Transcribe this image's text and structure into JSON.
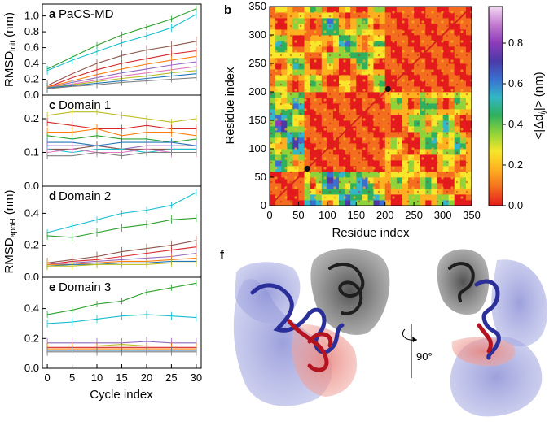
{
  "figure": {
    "panel_letters": [
      "a",
      "b",
      "c",
      "d",
      "e",
      "f"
    ],
    "rotation_label": "90°"
  },
  "chart_data": [
    {
      "id": "a",
      "type": "line",
      "title": "PaCS-MD",
      "ylabel_main": "RMSD",
      "ylabel_sub": "init",
      "ylabel_unit": " (nm)",
      "xlim": [
        -1,
        31
      ],
      "ylim": [
        0,
        1.15
      ],
      "yticks": [
        0.0,
        0.2,
        0.4,
        0.6,
        0.8,
        1.0
      ],
      "ytick_labels": [
        "0.0",
        "0.2",
        "0.4",
        "0.6",
        "0.8",
        "1.0"
      ],
      "x": [
        0,
        5,
        10,
        15,
        20,
        25,
        30
      ],
      "series": [
        {
          "name": "green",
          "color": "#2ca02c",
          "values": [
            0.33,
            0.48,
            0.63,
            0.76,
            0.86,
            0.96,
            1.09
          ]
        },
        {
          "name": "cyan",
          "color": "#17becf",
          "values": [
            0.31,
            0.44,
            0.55,
            0.66,
            0.75,
            0.85,
            1.02
          ]
        },
        {
          "name": "brown",
          "color": "#8c564b",
          "values": [
            0.12,
            0.27,
            0.4,
            0.5,
            0.57,
            0.62,
            0.68
          ]
        },
        {
          "name": "red",
          "color": "#d62728",
          "values": [
            0.1,
            0.22,
            0.32,
            0.4,
            0.46,
            0.52,
            0.56
          ]
        },
        {
          "name": "orange",
          "color": "#ff7f0e",
          "values": [
            0.1,
            0.18,
            0.26,
            0.33,
            0.39,
            0.44,
            0.49
          ]
        },
        {
          "name": "purple",
          "color": "#9467bd",
          "values": [
            0.09,
            0.16,
            0.22,
            0.28,
            0.33,
            0.38,
            0.42
          ]
        },
        {
          "name": "pink",
          "color": "#e377c2",
          "values": [
            0.09,
            0.14,
            0.19,
            0.24,
            0.28,
            0.32,
            0.36
          ]
        },
        {
          "name": "olive",
          "color": "#bcbd22",
          "values": [
            0.09,
            0.13,
            0.17,
            0.21,
            0.24,
            0.28,
            0.31
          ]
        },
        {
          "name": "blue",
          "color": "#1f77b4",
          "values": [
            0.09,
            0.12,
            0.15,
            0.18,
            0.21,
            0.24,
            0.27
          ]
        },
        {
          "name": "gray",
          "color": "#7f7f7f",
          "values": [
            0.08,
            0.11,
            0.13,
            0.16,
            0.18,
            0.2,
            0.22
          ]
        }
      ]
    },
    {
      "id": "c",
      "type": "line",
      "title": "Domain 1",
      "xlim": [
        -1,
        31
      ],
      "ylim": [
        0,
        0.27
      ],
      "yticks": [
        0.0,
        0.1,
        0.2
      ],
      "ytick_labels": [
        "0.0",
        "0.1",
        "0.2"
      ],
      "x": [
        0,
        5,
        10,
        15,
        20,
        25,
        30
      ],
      "series": [
        {
          "name": "olive",
          "color": "#bcbd22",
          "values": [
            0.21,
            0.22,
            0.22,
            0.21,
            0.2,
            0.19,
            0.2
          ]
        },
        {
          "name": "red",
          "color": "#d62728",
          "values": [
            0.19,
            0.18,
            0.17,
            0.17,
            0.18,
            0.17,
            0.17
          ]
        },
        {
          "name": "orange",
          "color": "#ff7f0e",
          "values": [
            0.16,
            0.16,
            0.17,
            0.15,
            0.16,
            0.16,
            0.15
          ]
        },
        {
          "name": "green",
          "color": "#2ca02c",
          "values": [
            0.15,
            0.14,
            0.15,
            0.14,
            0.14,
            0.13,
            0.14
          ]
        },
        {
          "name": "blue",
          "color": "#1f77b4",
          "values": [
            0.13,
            0.13,
            0.12,
            0.13,
            0.13,
            0.13,
            0.12
          ]
        },
        {
          "name": "purple",
          "color": "#9467bd",
          "values": [
            0.12,
            0.12,
            0.12,
            0.11,
            0.12,
            0.12,
            0.12
          ]
        },
        {
          "name": "brown",
          "color": "#8c564b",
          "values": [
            0.11,
            0.11,
            0.12,
            0.11,
            0.11,
            0.11,
            0.11
          ]
        },
        {
          "name": "cyan",
          "color": "#17becf",
          "values": [
            0.11,
            0.1,
            0.11,
            0.11,
            0.1,
            0.11,
            0.11
          ]
        },
        {
          "name": "pink",
          "color": "#e377c2",
          "values": [
            0.1,
            0.11,
            0.1,
            0.1,
            0.11,
            0.1,
            0.1
          ]
        },
        {
          "name": "gray",
          "color": "#7f7f7f",
          "values": [
            0.09,
            0.09,
            0.1,
            0.09,
            0.1,
            0.1,
            0.1
          ]
        }
      ]
    },
    {
      "id": "d",
      "type": "line",
      "title": "Domain 2",
      "ylabel_main": "RMSD",
      "ylabel_sub": "apoH",
      "ylabel_unit": " (nm)",
      "xlim": [
        -1,
        31
      ],
      "ylim": [
        0,
        0.57
      ],
      "yticks": [
        0.0,
        0.2,
        0.4
      ],
      "ytick_labels": [
        "0.0",
        "0.2",
        "0.4"
      ],
      "x": [
        0,
        5,
        10,
        15,
        20,
        25,
        30
      ],
      "series": [
        {
          "name": "cyan",
          "color": "#17becf",
          "values": [
            0.28,
            0.32,
            0.36,
            0.4,
            0.42,
            0.45,
            0.53
          ]
        },
        {
          "name": "green",
          "color": "#2ca02c",
          "values": [
            0.26,
            0.25,
            0.28,
            0.31,
            0.33,
            0.36,
            0.37
          ]
        },
        {
          "name": "brown",
          "color": "#8c564b",
          "values": [
            0.09,
            0.11,
            0.13,
            0.16,
            0.18,
            0.2,
            0.23
          ]
        },
        {
          "name": "red",
          "color": "#d62728",
          "values": [
            0.08,
            0.1,
            0.11,
            0.13,
            0.15,
            0.17,
            0.19
          ]
        },
        {
          "name": "purple",
          "color": "#9467bd",
          "values": [
            0.08,
            0.09,
            0.1,
            0.11,
            0.12,
            0.13,
            0.15
          ]
        },
        {
          "name": "orange",
          "color": "#ff7f0e",
          "values": [
            0.08,
            0.08,
            0.09,
            0.1,
            0.1,
            0.11,
            0.12
          ]
        },
        {
          "name": "blue",
          "color": "#1f77b4",
          "values": [
            0.07,
            0.08,
            0.08,
            0.09,
            0.09,
            0.1,
            0.1
          ]
        },
        {
          "name": "olive",
          "color": "#bcbd22",
          "values": [
            0.07,
            0.07,
            0.08,
            0.08,
            0.08,
            0.09,
            0.09
          ]
        }
      ]
    },
    {
      "id": "e",
      "type": "line",
      "title": "Domain 3",
      "xlabel": "Cycle index",
      "xlim": [
        -1,
        31
      ],
      "ylim": [
        0,
        0.61
      ],
      "yticks": [
        0.0,
        0.2,
        0.4
      ],
      "ytick_labels": [
        "0.0",
        "0.2",
        "0.4"
      ],
      "xticks": [
        0,
        5,
        10,
        15,
        20,
        25,
        30
      ],
      "xtick_labels": [
        "0",
        "5",
        "10",
        "15",
        "20",
        "25",
        "30"
      ],
      "x": [
        0,
        5,
        10,
        15,
        20,
        25,
        30
      ],
      "series": [
        {
          "name": "green",
          "color": "#2ca02c",
          "values": [
            0.36,
            0.39,
            0.43,
            0.45,
            0.51,
            0.54,
            0.57
          ]
        },
        {
          "name": "cyan",
          "color": "#17becf",
          "values": [
            0.3,
            0.31,
            0.33,
            0.35,
            0.36,
            0.35,
            0.34
          ]
        },
        {
          "name": "purple",
          "color": "#9467bd",
          "values": [
            0.17,
            0.17,
            0.17,
            0.17,
            0.18,
            0.17,
            0.17
          ]
        },
        {
          "name": "olive",
          "color": "#bcbd22",
          "values": [
            0.15,
            0.15,
            0.15,
            0.16,
            0.15,
            0.15,
            0.15
          ]
        },
        {
          "name": "red",
          "color": "#d62728",
          "values": [
            0.14,
            0.14,
            0.14,
            0.14,
            0.14,
            0.14,
            0.14
          ]
        },
        {
          "name": "orange",
          "color": "#ff7f0e",
          "values": [
            0.13,
            0.13,
            0.13,
            0.13,
            0.13,
            0.13,
            0.13
          ]
        },
        {
          "name": "blue",
          "color": "#1f77b4",
          "values": [
            0.12,
            0.12,
            0.12,
            0.12,
            0.12,
            0.12,
            0.12
          ]
        },
        {
          "name": "gray",
          "color": "#7f7f7f",
          "values": [
            0.11,
            0.11,
            0.11,
            0.11,
            0.11,
            0.11,
            0.11
          ]
        }
      ]
    },
    {
      "id": "b",
      "type": "heatmap",
      "xlabel": "Residue index",
      "ylabel": "Residue index",
      "xlim": [
        0,
        350
      ],
      "ylim": [
        0,
        350
      ],
      "xticks": [
        0,
        50,
        100,
        150,
        200,
        250,
        300,
        350
      ],
      "yticks": [
        0,
        50,
        100,
        150,
        200,
        250,
        300,
        350
      ],
      "tick_labels": [
        "0",
        "50",
        "100",
        "150",
        "200",
        "250",
        "300",
        "350"
      ],
      "colorbar_label_prefix": "<|Δd",
      "colorbar_label_sub": "ij",
      "colorbar_label_suffix": "|> (nm)",
      "colorbar_range": [
        0,
        0.98
      ],
      "colorbar_ticks": [
        0.0,
        0.2,
        0.4,
        0.6,
        0.8
      ],
      "colorbar_tick_labels": [
        "0.0",
        "0.2",
        "0.4",
        "0.6",
        "0.8"
      ],
      "colorbar_colors": [
        "#e41a1c",
        "#f46d1e",
        "#ffb020",
        "#f7e62a",
        "#8fd33a",
        "#2fb05e",
        "#33b6c7",
        "#3a6fd0",
        "#4b3aa8",
        "#8d3cb8",
        "#c27ad0",
        "#f4d9f4"
      ],
      "domain_blocks": [
        {
          "name": "domain-1",
          "range": [
            0,
            65
          ]
        },
        {
          "name": "domain-2",
          "range": [
            65,
            205
          ]
        },
        {
          "name": "domain-3",
          "range": [
            205,
            350
          ]
        }
      ],
      "markers": [
        [
          65,
          65
        ],
        [
          205,
          205
        ]
      ]
    }
  ]
}
